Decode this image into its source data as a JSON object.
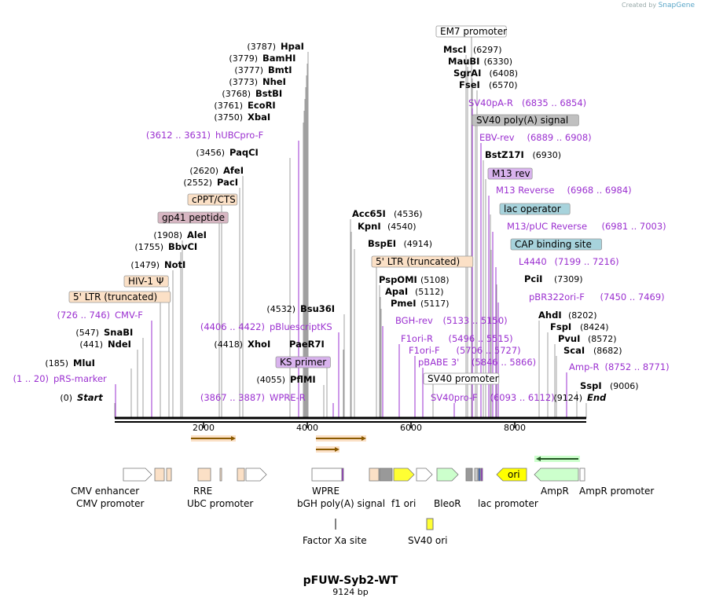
{
  "credit": {
    "prefix": "Created by",
    "brand": "SnapGene"
  },
  "plasmid": {
    "name": "pFUW-Syb2-WT",
    "length_label": "9124 bp"
  },
  "scale": {
    "min": 0,
    "max": 9124,
    "ticks": [
      "2000",
      "4000",
      "6000",
      "8000"
    ]
  },
  "sites": [
    {
      "name": "HpaI",
      "pos": "(3787)",
      "type": "enzyme"
    },
    {
      "name": "BamHI",
      "pos": "(3779)",
      "type": "enzyme"
    },
    {
      "name": "BmtI",
      "pos": "(3777)",
      "type": "enzyme"
    },
    {
      "name": "NheI",
      "pos": "(3773)",
      "type": "enzyme"
    },
    {
      "name": "BstBI",
      "pos": "(3768)",
      "type": "enzyme"
    },
    {
      "name": "EcoRI",
      "pos": "(3761)",
      "type": "enzyme"
    },
    {
      "name": "XbaI",
      "pos": "(3750)",
      "type": "enzyme"
    },
    {
      "name": "hUBCpro-F",
      "pos": "(3612 .. 3631)",
      "type": "primer"
    },
    {
      "name": "PaqCI",
      "pos": "(3456)",
      "type": "enzyme"
    },
    {
      "name": "AfeI",
      "pos": "(2620)",
      "type": "enzyme"
    },
    {
      "name": "PacI",
      "pos": "(2552)",
      "type": "enzyme"
    },
    {
      "name": "cPPT/CTS",
      "type": "box",
      "color": "#fbe0c6"
    },
    {
      "name": "gp41 peptide",
      "type": "box",
      "color": "#d7b6c2"
    },
    {
      "name": "AleI",
      "pos": "(1908)",
      "type": "enzyme"
    },
    {
      "name": "BbvCI",
      "pos": "(1755)",
      "type": "enzyme"
    },
    {
      "name": "NotI",
      "pos": "(1479)",
      "type": "enzyme"
    },
    {
      "name": "HIV-1 Ψ",
      "type": "box",
      "color": "#fbe0c6"
    },
    {
      "name": "5' LTR (truncated)",
      "type": "box",
      "color": "#fbe0c6"
    },
    {
      "name": "CMV-F",
      "pos": "(726 .. 746)",
      "type": "primer"
    },
    {
      "name": "SnaBI",
      "pos": "(547)",
      "type": "enzyme"
    },
    {
      "name": "NdeI",
      "pos": "(441)",
      "type": "enzyme"
    },
    {
      "name": "MluI",
      "pos": "(185)",
      "type": "enzyme"
    },
    {
      "name": "pRS-marker",
      "pos": "(1 .. 20)",
      "type": "primer"
    },
    {
      "name": "Start",
      "pos": "(0)",
      "type": "italic"
    },
    {
      "name": "pBluescriptKS",
      "pos": "(4406 .. 4422)",
      "type": "primer"
    },
    {
      "name": "Bsu36I",
      "pos": "(4532)",
      "type": "enzyme"
    },
    {
      "name": "XhoI",
      "pos": "(4418)",
      "type": "enzyme"
    },
    {
      "name": "PaeR7I",
      "type": "enzyme"
    },
    {
      "name": "KS primer",
      "type": "box",
      "color": "#d9b3ee"
    },
    {
      "name": "PflMI",
      "pos": "(4055)",
      "type": "enzyme"
    },
    {
      "name": "WPRE-R",
      "pos": "(3867 .. 3887)",
      "type": "primer"
    },
    {
      "name": "Acc65I",
      "pos": "(4536)",
      "type": "enzyme"
    },
    {
      "name": "KpnI",
      "pos": "(4540)",
      "type": "enzyme"
    },
    {
      "name": "BspEI",
      "pos": "(4914)",
      "type": "enzyme"
    },
    {
      "name": "5' LTR (truncated)",
      "type": "box",
      "color": "#fbe0c6"
    },
    {
      "name": "PspOMI",
      "pos": "(5108)",
      "type": "enzyme"
    },
    {
      "name": "ApaI",
      "pos": "(5112)",
      "type": "enzyme"
    },
    {
      "name": "PmeI",
      "pos": "(5117)",
      "type": "enzyme"
    },
    {
      "name": "BGH-rev",
      "pos": "(5133 .. 5150)",
      "type": "primer"
    },
    {
      "name": "F1ori-R",
      "pos": "(5496 .. 5515)",
      "type": "primer"
    },
    {
      "name": "F1ori-F",
      "pos": "(5706 .. 5727)",
      "type": "primer"
    },
    {
      "name": "pBABE 3'",
      "pos": "(5846 .. 5866)",
      "type": "primer"
    },
    {
      "name": "SV40 promoter",
      "type": "box",
      "color": "#ffffff"
    },
    {
      "name": "SV40pro-F",
      "pos": "(6093 .. 6112)",
      "type": "primer"
    },
    {
      "name": "EM7 promoter",
      "type": "box",
      "color": "#ffffff"
    },
    {
      "name": "MscI",
      "pos": "(6297)",
      "type": "enzyme"
    },
    {
      "name": "MauBI",
      "pos": "(6330)",
      "type": "enzyme"
    },
    {
      "name": "SgrAI",
      "pos": "(6408)",
      "type": "enzyme"
    },
    {
      "name": "FseI",
      "pos": "(6570)",
      "type": "enzyme"
    },
    {
      "name": "SV40pA-R",
      "pos": "(6835 .. 6854)",
      "type": "primer"
    },
    {
      "name": "SV40 poly(A) signal",
      "type": "box",
      "color": "#c0c0c0"
    },
    {
      "name": "EBV-rev",
      "pos": "(6889 .. 6908)",
      "type": "primer"
    },
    {
      "name": "BstZ17I",
      "pos": "(6930)",
      "type": "enzyme"
    },
    {
      "name": "M13 rev",
      "type": "box",
      "color": "#d9b3ee"
    },
    {
      "name": "M13 Reverse",
      "pos": "(6968 .. 6984)",
      "type": "primer"
    },
    {
      "name": "lac operator",
      "type": "box",
      "color": "#a7d3dc"
    },
    {
      "name": "M13/pUC Reverse",
      "pos": "(6981 .. 7003)",
      "type": "primer"
    },
    {
      "name": "CAP binding site",
      "type": "box",
      "color": "#a7d3dc"
    },
    {
      "name": "L4440",
      "pos": "(7199 .. 7216)",
      "type": "primer"
    },
    {
      "name": "PciI",
      "pos": "(7309)",
      "type": "enzyme"
    },
    {
      "name": "pBR322ori-F",
      "pos": "(7450 .. 7469)",
      "type": "primer"
    },
    {
      "name": "AhdI",
      "pos": "(8202)",
      "type": "enzyme"
    },
    {
      "name": "FspI",
      "pos": "(8424)",
      "type": "enzyme"
    },
    {
      "name": "PvuI",
      "pos": "(8572)",
      "type": "enzyme"
    },
    {
      "name": "ScaI",
      "pos": "(8682)",
      "type": "enzyme"
    },
    {
      "name": "Amp-R",
      "pos": "(8752 .. 8771)",
      "type": "primer"
    },
    {
      "name": "SspI",
      "pos": "(9006)",
      "type": "enzyme"
    },
    {
      "name": "End",
      "pos": "(9124)",
      "type": "italic"
    }
  ],
  "features": [
    {
      "name": "CMV enhancer"
    },
    {
      "name": "CMV promoter"
    },
    {
      "name": "RRE"
    },
    {
      "name": "UbC promoter"
    },
    {
      "name": "WPRE"
    },
    {
      "name": "bGH poly(A) signal"
    },
    {
      "name": "f1 ori"
    },
    {
      "name": "BleoR"
    },
    {
      "name": "lac promoter"
    },
    {
      "name": "AmpR"
    },
    {
      "name": "AmpR promoter"
    },
    {
      "name": "Factor Xa site"
    },
    {
      "name": "SV40 ori"
    },
    {
      "name": "ori"
    }
  ],
  "colors": {
    "primer": "#9b30d0",
    "backbone": "#000000",
    "orf_arrow": "#e8a33a"
  }
}
